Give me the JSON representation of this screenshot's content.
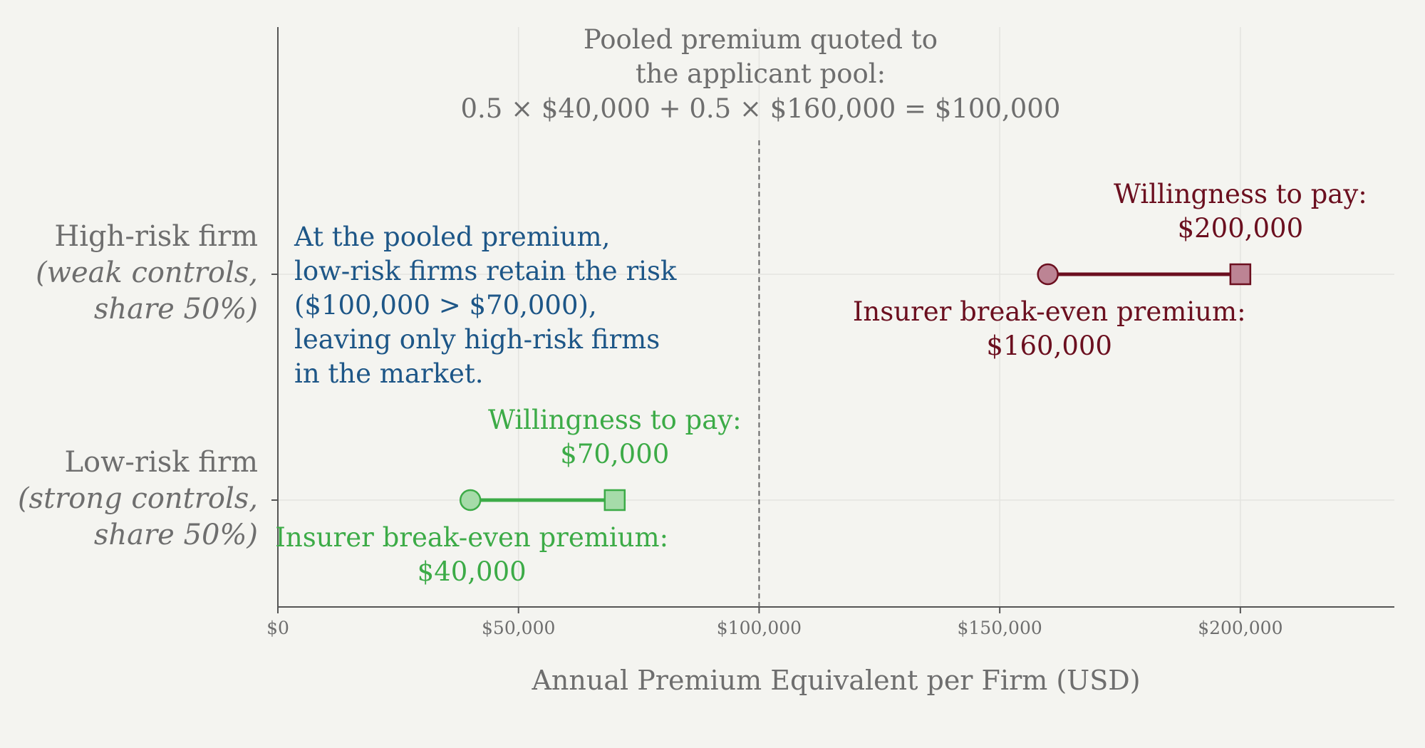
{
  "chart_data": {
    "type": "dumbbell",
    "xlabel": "Annual Premium Equivalent per Firm (USD)",
    "xlim": [
      0,
      232000
    ],
    "x_ticks": [
      0,
      50000,
      100000,
      150000,
      200000
    ],
    "x_tick_labels": [
      "$0",
      "$50,000",
      "$100,000",
      "$150,000",
      "$200,000"
    ],
    "grid": true,
    "series": [
      {
        "category_lines": [
          "Low-risk firm",
          "(strong controls,",
          "share 50%)"
        ],
        "break_even": 40000,
        "willingness_to_pay": 70000,
        "wtp_label_lines": [
          "Willingness to pay:",
          "$70,000"
        ],
        "be_label_lines": [
          "Insurer break-even premium:",
          "$40,000"
        ],
        "color": "#3cab47",
        "fill": "#a6dba9"
      },
      {
        "category_lines": [
          "High-risk firm",
          "(weak controls,",
          "share 50%)"
        ],
        "break_even": 160000,
        "willingness_to_pay": 200000,
        "wtp_label_lines": [
          "Willingness to pay:",
          "$200,000"
        ],
        "be_label_lines": [
          "Insurer break-even premium:",
          "$160,000"
        ],
        "color": "#6b0f1f",
        "fill": "#bc8494"
      }
    ],
    "pooled_premium": 100000,
    "pooled_label_lines": [
      "Pooled premium quoted to",
      "the applicant pool:",
      "0.5 × $40,000 + 0.5 × $160,000 = $100,000"
    ],
    "annotation_lines": [
      "At the pooled premium,",
      "low-risk firms retain the risk",
      "($100,000 > $70,000),",
      "leaving only high-risk firms",
      "in the market."
    ],
    "colors": {
      "background": "#f4f4f0",
      "axis": "#555555",
      "text_gray": "#6e6e6e",
      "annotation": "#1d5687",
      "grid": "#e4e4e0"
    }
  }
}
